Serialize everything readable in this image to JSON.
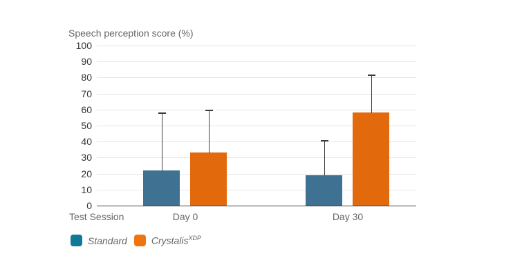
{
  "chart_data": {
    "type": "bar",
    "title": "",
    "y_axis_title": "Speech perception score (%)",
    "x_axis_title": "Test Session",
    "categories": [
      "Day 0",
      "Day 30"
    ],
    "series": [
      {
        "name": "Standard",
        "name_superscript": "",
        "values": [
          22,
          19
        ],
        "error_top": [
          58,
          41
        ],
        "bar_color": "#3E7192",
        "legend_color": "#0F7998"
      },
      {
        "name": "Crystalis",
        "name_superscript": "XDP",
        "values": [
          33,
          58
        ],
        "error_top": [
          60,
          82
        ],
        "bar_color": "#E26A0D",
        "legend_color": "#F0750F"
      }
    ],
    "ylim": [
      0,
      100
    ],
    "y_tick_step": 10,
    "grid": true,
    "error_bars": "upper",
    "legend_position": "bottom-left",
    "colors": {
      "background": "#ffffff",
      "gridline": "#e6e6e6",
      "axis_line": "#404040",
      "tick_label": "#333333",
      "axis_title": "#666666",
      "error_bar": "#3a3a3a"
    }
  }
}
